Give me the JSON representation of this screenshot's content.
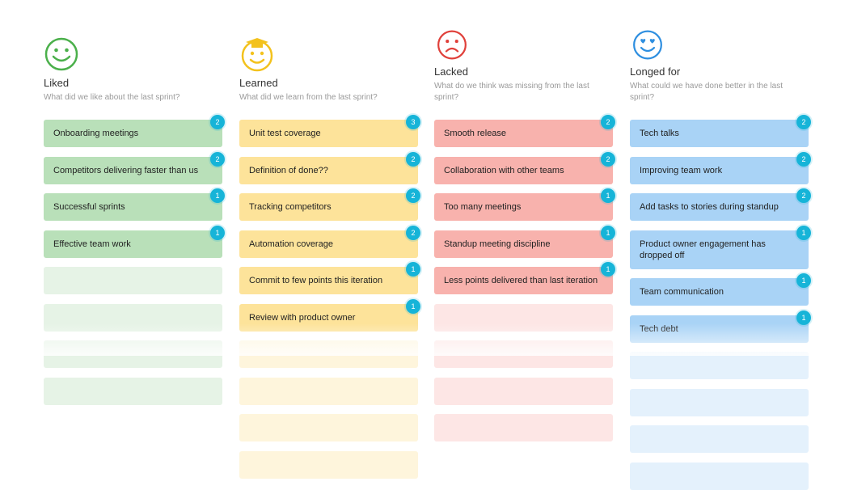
{
  "columns": [
    {
      "title": "Liked",
      "subtitle": "What did we like about the last sprint?",
      "cards": [
        {
          "text": "Onboarding meetings",
          "votes": 2
        },
        {
          "text": "Competitors delivering faster than us",
          "votes": 2
        },
        {
          "text": "Successful sprints",
          "votes": 1
        },
        {
          "text": "Effective team work",
          "votes": 1
        }
      ]
    },
    {
      "title": "Learned",
      "subtitle": "What did we learn from the last sprint?",
      "cards": [
        {
          "text": "Unit test coverage",
          "votes": 3
        },
        {
          "text": "Definition of done??",
          "votes": 2
        },
        {
          "text": "Tracking competitors",
          "votes": 2
        },
        {
          "text": "Automation coverage",
          "votes": 2
        },
        {
          "text": "Commit to few points this iteration",
          "votes": 1
        },
        {
          "text": "Review with product owner",
          "votes": 1
        }
      ]
    },
    {
      "title": "Lacked",
      "subtitle": "What do we think was missing from the last sprint?",
      "cards": [
        {
          "text": "Smooth release",
          "votes": 2
        },
        {
          "text": "Collaboration with other teams",
          "votes": 2
        },
        {
          "text": "Too many meetings",
          "votes": 1
        },
        {
          "text": "Standup meeting discipline",
          "votes": 1
        },
        {
          "text": "Less points delivered than last iteration",
          "votes": 1
        }
      ]
    },
    {
      "title": "Longed for",
      "subtitle": "What could we have done better in the last sprint?",
      "cards": [
        {
          "text": "Tech talks",
          "votes": 2
        },
        {
          "text": "Improving team work",
          "votes": 2
        },
        {
          "text": "Add tasks to stories during standup",
          "votes": 2
        },
        {
          "text": "Product owner engagement has dropped off",
          "votes": 1
        },
        {
          "text": "Team communication",
          "votes": 1
        },
        {
          "text": "Tech debt",
          "votes": 1
        }
      ]
    }
  ]
}
